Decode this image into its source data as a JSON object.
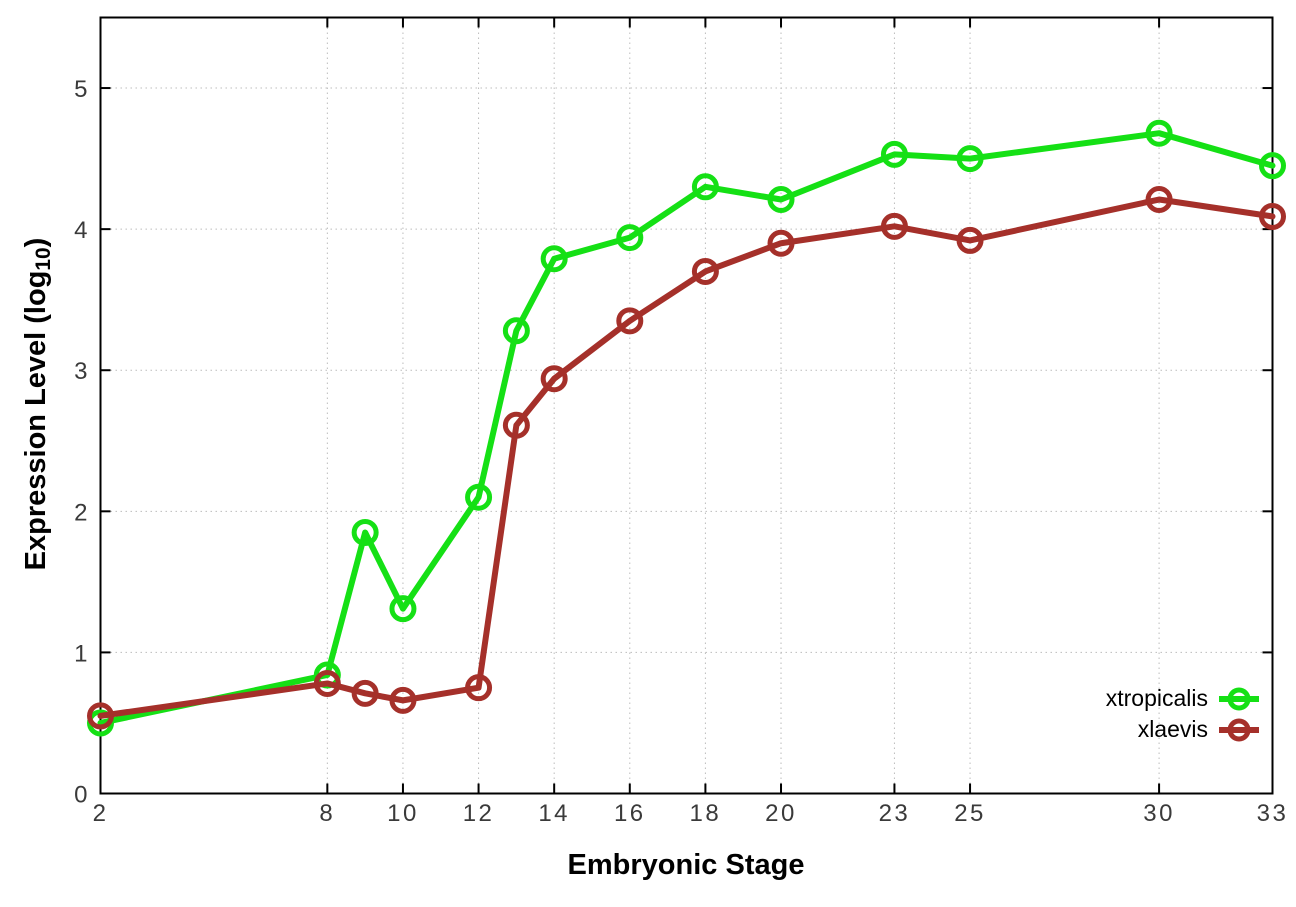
{
  "page": {
    "background": "#ffffff"
  },
  "chart_data": {
    "type": "line",
    "title": "",
    "xlabel": "Embryonic Stage",
    "ylabel": "Expression Level (log10)",
    "ylabel_parts": {
      "pre": "Expression Level (log",
      "sub": "10",
      "post": ")"
    },
    "x": [
      2,
      8,
      9,
      10,
      12,
      13,
      14,
      16,
      18,
      20,
      23,
      25,
      30,
      33
    ],
    "series": [
      {
        "name": "xtropicalis",
        "color": "#15e015",
        "values": [
          0.5,
          0.84,
          1.85,
          1.31,
          2.1,
          3.28,
          3.79,
          3.94,
          4.3,
          4.21,
          4.53,
          4.5,
          4.68,
          4.45
        ]
      },
      {
        "name": "xlaevis",
        "color": "#a5302a",
        "values": [
          0.55,
          0.78,
          0.71,
          0.66,
          0.75,
          2.61,
          2.94,
          3.35,
          3.7,
          3.9,
          4.02,
          3.92,
          4.21,
          4.09
        ]
      }
    ],
    "x_ticks": [
      2,
      8,
      10,
      12,
      14,
      16,
      18,
      20,
      23,
      25,
      30,
      33
    ],
    "y_ticks": [
      0,
      1,
      2,
      3,
      4,
      5
    ],
    "xlim": [
      2,
      33
    ],
    "ylim": [
      0,
      5.5
    ],
    "grid": true,
    "grid_color": "#bcbcbc",
    "axis_color": "#000000",
    "tick_label_color": "#3a3a3a",
    "legend_position": "bottom-right",
    "marker": "open-circle"
  }
}
